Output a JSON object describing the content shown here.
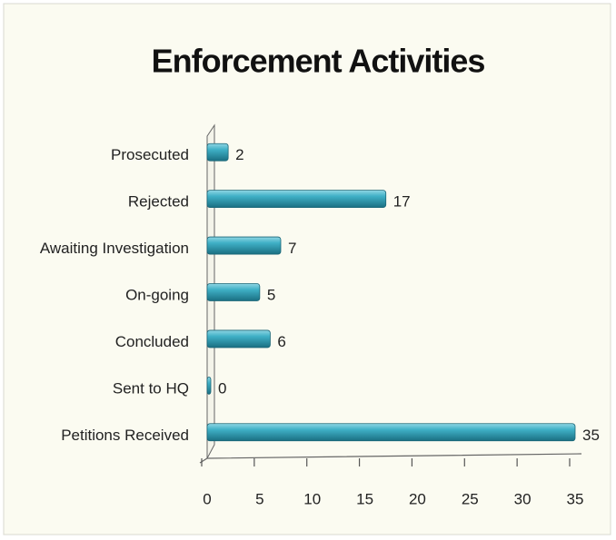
{
  "chart_data": {
    "type": "bar",
    "orientation": "horizontal",
    "title": "Enforcement Activities",
    "categories": [
      "Prosecuted",
      "Rejected",
      "Awaiting Investigation",
      "On-going",
      "Concluded",
      "Sent to HQ",
      "Petitions Received"
    ],
    "values": [
      2,
      17,
      7,
      5,
      6,
      0,
      35
    ],
    "color": "#2b9db3",
    "xlim": [
      0,
      35
    ],
    "xticks": [
      0,
      5,
      10,
      15,
      20,
      25,
      30,
      35
    ],
    "grid": false
  }
}
